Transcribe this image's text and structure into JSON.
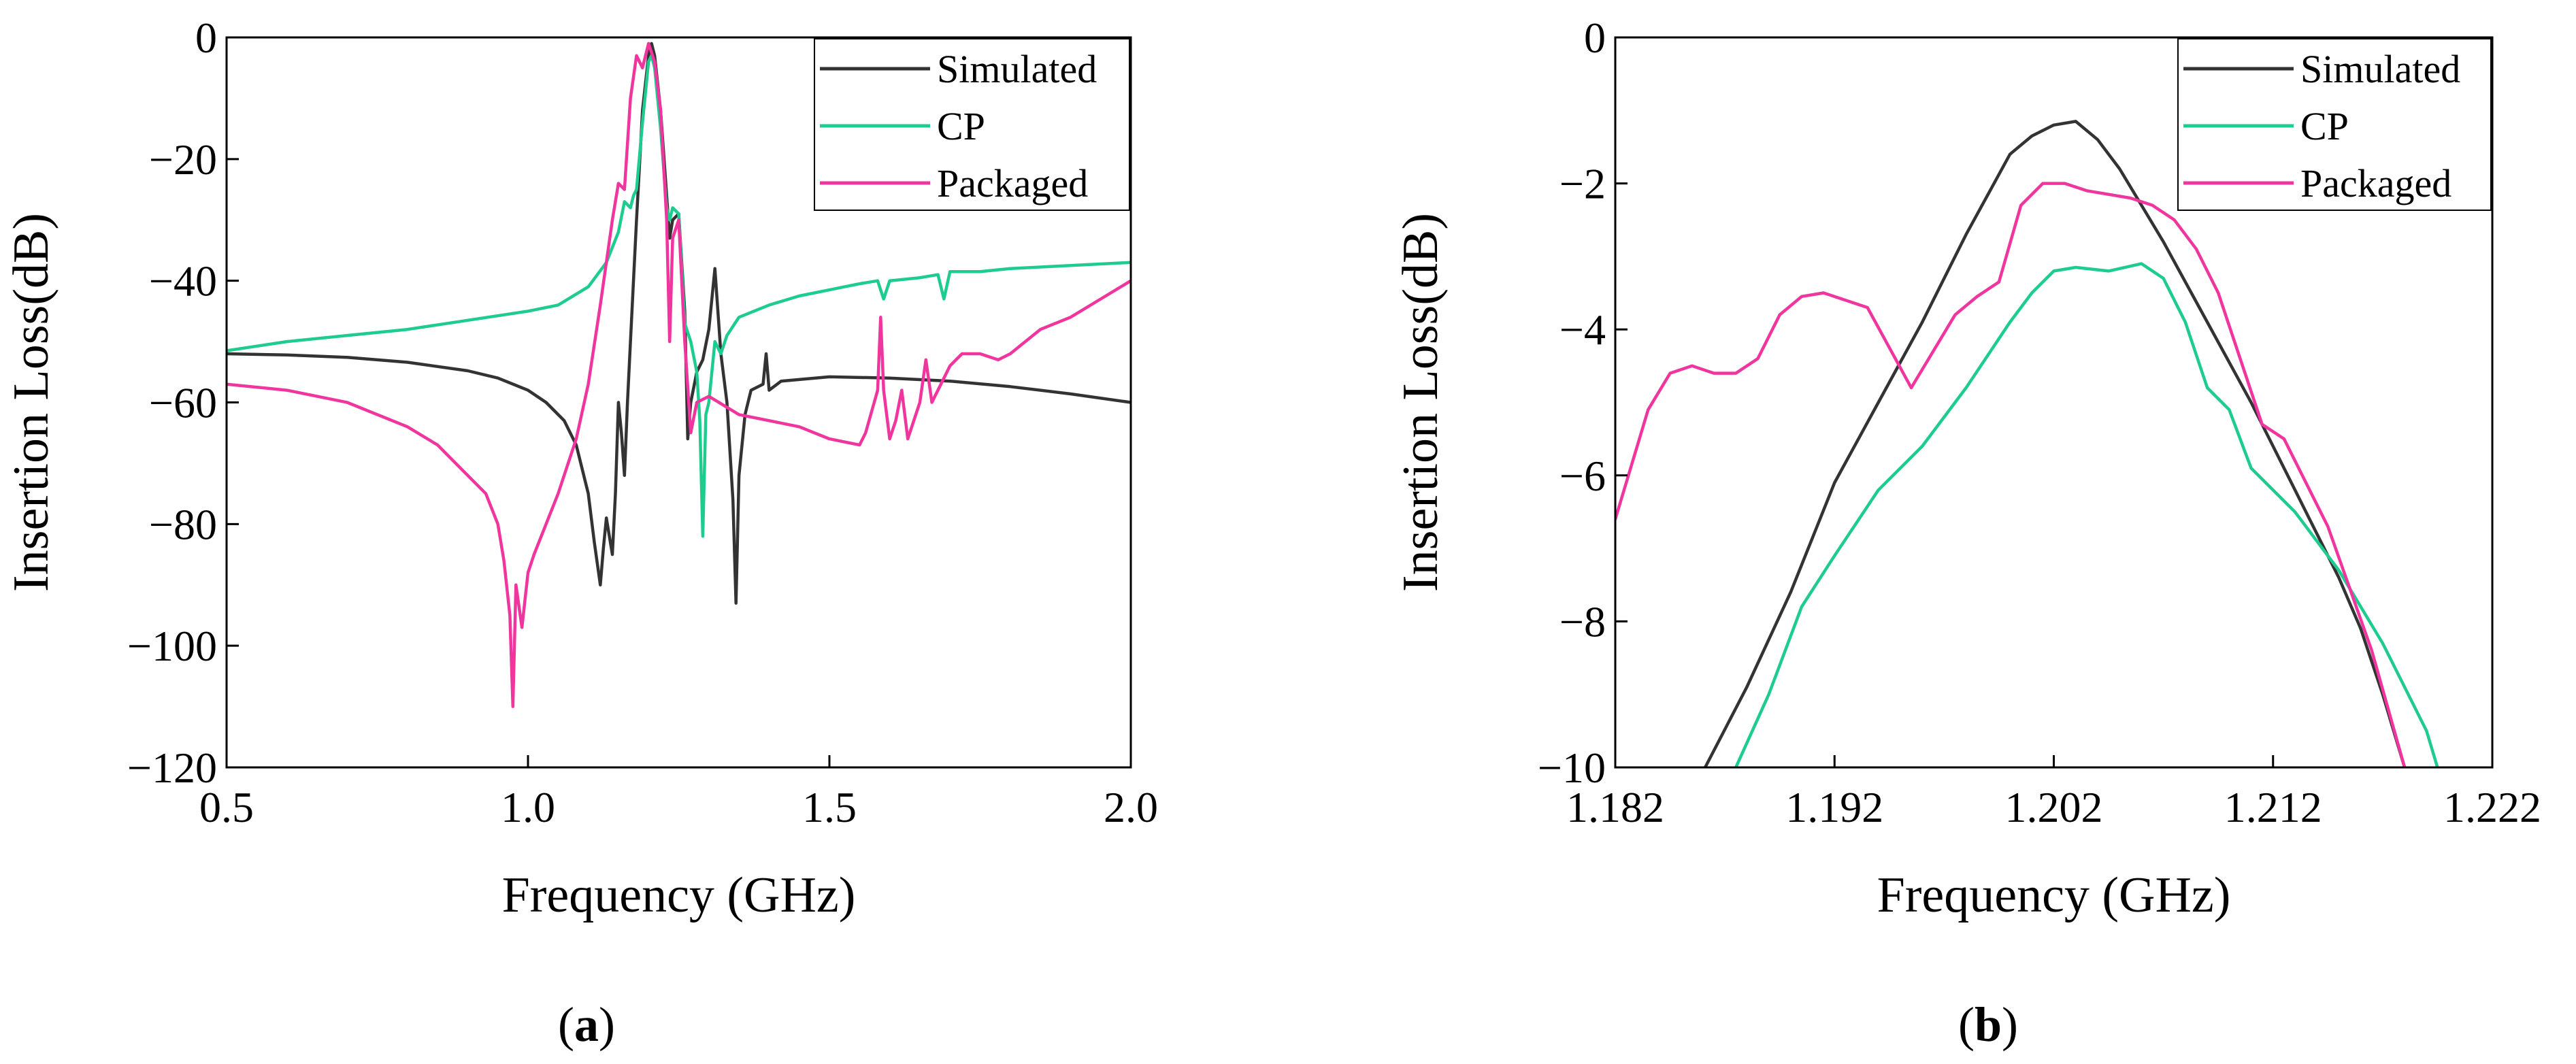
{
  "chart_data": [
    {
      "panel": "a",
      "type": "line",
      "xlabel": "Frequency (GHz)",
      "ylabel": "Insertion Loss(dB)",
      "xlim": [
        0.5,
        2.0
      ],
      "ylim": [
        -120,
        0
      ],
      "xticks": [
        0.5,
        1.0,
        1.5,
        2.0
      ],
      "xtick_labels": [
        "0.5",
        "1.0",
        "1.5",
        "2.0"
      ],
      "yticks": [
        0,
        -20,
        -40,
        -60,
        -80,
        -100,
        -120
      ],
      "ytick_labels": [
        "0",
        "−20",
        "−40",
        "−60",
        "−80",
        "−100",
        "−120"
      ],
      "grid": false,
      "legend_position": "top-right",
      "series": [
        {
          "name": "Simulated",
          "color": "#333333",
          "points": [
            [
              0.5,
              -52
            ],
            [
              0.6,
              -52.2
            ],
            [
              0.7,
              -52.6
            ],
            [
              0.8,
              -53.4
            ],
            [
              0.9,
              -54.8
            ],
            [
              0.95,
              -56
            ],
            [
              1.0,
              -58
            ],
            [
              1.03,
              -60
            ],
            [
              1.06,
              -63
            ],
            [
              1.08,
              -67
            ],
            [
              1.1,
              -75
            ],
            [
              1.11,
              -83
            ],
            [
              1.12,
              -90
            ],
            [
              1.125,
              -84
            ],
            [
              1.13,
              -79
            ],
            [
              1.14,
              -85
            ],
            [
              1.145,
              -75
            ],
            [
              1.15,
              -60
            ],
            [
              1.155,
              -65
            ],
            [
              1.16,
              -72
            ],
            [
              1.165,
              -60
            ],
            [
              1.17,
              -50
            ],
            [
              1.18,
              -30
            ],
            [
              1.19,
              -12
            ],
            [
              1.2,
              -3
            ],
            [
              1.205,
              -1
            ],
            [
              1.21,
              -3
            ],
            [
              1.22,
              -12
            ],
            [
              1.23,
              -26
            ],
            [
              1.235,
              -33
            ],
            [
              1.24,
              -30
            ],
            [
              1.25,
              -29
            ],
            [
              1.26,
              -45
            ],
            [
              1.265,
              -66
            ],
            [
              1.27,
              -60
            ],
            [
              1.28,
              -55
            ],
            [
              1.29,
              -53
            ],
            [
              1.3,
              -48
            ],
            [
              1.31,
              -38
            ],
            [
              1.315,
              -45
            ],
            [
              1.32,
              -52
            ],
            [
              1.33,
              -60
            ],
            [
              1.34,
              -76
            ],
            [
              1.345,
              -93
            ],
            [
              1.35,
              -72
            ],
            [
              1.36,
              -62
            ],
            [
              1.37,
              -58
            ],
            [
              1.39,
              -57
            ],
            [
              1.395,
              -52
            ],
            [
              1.4,
              -58
            ],
            [
              1.42,
              -56.5
            ],
            [
              1.5,
              -55.8
            ],
            [
              1.6,
              -56
            ],
            [
              1.7,
              -56.5
            ],
            [
              1.8,
              -57.4
            ],
            [
              1.9,
              -58.6
            ],
            [
              2.0,
              -60
            ]
          ]
        },
        {
          "name": "CP",
          "color": "#1fcc8f",
          "points": [
            [
              0.5,
              -51.5
            ],
            [
              0.6,
              -50
            ],
            [
              0.7,
              -49
            ],
            [
              0.8,
              -48
            ],
            [
              0.9,
              -46.5
            ],
            [
              1.0,
              -45
            ],
            [
              1.05,
              -44
            ],
            [
              1.1,
              -41
            ],
            [
              1.13,
              -37
            ],
            [
              1.15,
              -32
            ],
            [
              1.16,
              -27
            ],
            [
              1.17,
              -28
            ],
            [
              1.175,
              -26
            ],
            [
              1.18,
              -25
            ],
            [
              1.19,
              -14
            ],
            [
              1.2,
              -4
            ],
            [
              1.205,
              -3
            ],
            [
              1.21,
              -5
            ],
            [
              1.22,
              -15
            ],
            [
              1.23,
              -28
            ],
            [
              1.235,
              -30
            ],
            [
              1.24,
              -28
            ],
            [
              1.25,
              -29
            ],
            [
              1.26,
              -47
            ],
            [
              1.27,
              -50
            ],
            [
              1.28,
              -55
            ],
            [
              1.285,
              -63
            ],
            [
              1.29,
              -82
            ],
            [
              1.295,
              -62
            ],
            [
              1.3,
              -60
            ],
            [
              1.31,
              -50
            ],
            [
              1.32,
              -52
            ],
            [
              1.33,
              -49
            ],
            [
              1.35,
              -46
            ],
            [
              1.4,
              -44
            ],
            [
              1.45,
              -42.5
            ],
            [
              1.5,
              -41.5
            ],
            [
              1.55,
              -40.5
            ],
            [
              1.58,
              -40
            ],
            [
              1.59,
              -43
            ],
            [
              1.6,
              -40
            ],
            [
              1.65,
              -39.5
            ],
            [
              1.68,
              -39
            ],
            [
              1.69,
              -43
            ],
            [
              1.7,
              -38.5
            ],
            [
              1.75,
              -38.5
            ],
            [
              1.8,
              -38
            ],
            [
              1.9,
              -37.5
            ],
            [
              2.0,
              -37
            ]
          ]
        },
        {
          "name": "Packaged",
          "color": "#f0359f",
          "points": [
            [
              0.5,
              -57
            ],
            [
              0.6,
              -58
            ],
            [
              0.7,
              -60
            ],
            [
              0.8,
              -64
            ],
            [
              0.85,
              -67
            ],
            [
              0.9,
              -72
            ],
            [
              0.93,
              -75
            ],
            [
              0.95,
              -80
            ],
            [
              0.96,
              -86
            ],
            [
              0.97,
              -95
            ],
            [
              0.975,
              -110
            ],
            [
              0.98,
              -90
            ],
            [
              0.99,
              -97
            ],
            [
              1.0,
              -88
            ],
            [
              1.01,
              -85
            ],
            [
              1.03,
              -80
            ],
            [
              1.05,
              -75
            ],
            [
              1.08,
              -66
            ],
            [
              1.1,
              -57
            ],
            [
              1.12,
              -44
            ],
            [
              1.14,
              -30
            ],
            [
              1.15,
              -24
            ],
            [
              1.16,
              -25
            ],
            [
              1.17,
              -10
            ],
            [
              1.18,
              -3
            ],
            [
              1.19,
              -5
            ],
            [
              1.2,
              -1
            ],
            [
              1.21,
              -4
            ],
            [
              1.22,
              -12
            ],
            [
              1.23,
              -30
            ],
            [
              1.235,
              -50
            ],
            [
              1.24,
              -33
            ],
            [
              1.25,
              -30
            ],
            [
              1.26,
              -50
            ],
            [
              1.27,
              -65
            ],
            [
              1.28,
              -60
            ],
            [
              1.3,
              -59
            ],
            [
              1.35,
              -62
            ],
            [
              1.4,
              -63
            ],
            [
              1.45,
              -64
            ],
            [
              1.5,
              -66
            ],
            [
              1.55,
              -67
            ],
            [
              1.56,
              -65
            ],
            [
              1.58,
              -58
            ],
            [
              1.585,
              -46
            ],
            [
              1.59,
              -58
            ],
            [
              1.6,
              -66
            ],
            [
              1.61,
              -63
            ],
            [
              1.62,
              -58
            ],
            [
              1.63,
              -66
            ],
            [
              1.65,
              -60
            ],
            [
              1.66,
              -53
            ],
            [
              1.67,
              -60
            ],
            [
              1.7,
              -54
            ],
            [
              1.72,
              -52
            ],
            [
              1.75,
              -52
            ],
            [
              1.78,
              -53
            ],
            [
              1.8,
              -52
            ],
            [
              1.85,
              -48
            ],
            [
              1.9,
              -46
            ],
            [
              1.95,
              -43
            ],
            [
              2.0,
              -40
            ]
          ]
        }
      ]
    },
    {
      "panel": "b",
      "type": "line",
      "xlabel": "Frequency (GHz)",
      "ylabel": "Insertion Loss(dB)",
      "xlim": [
        1.182,
        1.222
      ],
      "ylim": [
        -10,
        0
      ],
      "xticks": [
        1.182,
        1.192,
        1.202,
        1.212,
        1.222
      ],
      "xtick_labels": [
        "1.182",
        "1.192",
        "1.202",
        "1.212",
        "1.222"
      ],
      "yticks": [
        0,
        -2,
        -4,
        -6,
        -8,
        -10
      ],
      "ytick_labels": [
        "0",
        "−2",
        "−4",
        "−6",
        "−8",
        "−10"
      ],
      "grid": false,
      "legend_position": "top-right",
      "series": [
        {
          "name": "Simulated",
          "color": "#333333",
          "points": [
            [
              1.1861,
              -10
            ],
            [
              1.188,
              -8.9
            ],
            [
              1.19,
              -7.6
            ],
            [
              1.192,
              -6.1
            ],
            [
              1.194,
              -5.0
            ],
            [
              1.196,
              -3.9
            ],
            [
              1.198,
              -2.7
            ],
            [
              1.2,
              -1.6
            ],
            [
              1.201,
              -1.35
            ],
            [
              1.202,
              -1.2
            ],
            [
              1.203,
              -1.15
            ],
            [
              1.204,
              -1.4
            ],
            [
              1.205,
              -1.8
            ],
            [
              1.207,
              -2.8
            ],
            [
              1.209,
              -3.9
            ],
            [
              1.211,
              -5.0
            ],
            [
              1.213,
              -6.2
            ],
            [
              1.215,
              -7.4
            ],
            [
              1.216,
              -8.1
            ],
            [
              1.217,
              -9.0
            ],
            [
              1.218,
              -10
            ]
          ]
        },
        {
          "name": "CP",
          "color": "#1fcc8f",
          "points": [
            [
              1.1875,
              -10
            ],
            [
              1.189,
              -9.0
            ],
            [
              1.1905,
              -7.8
            ],
            [
              1.192,
              -7.1
            ],
            [
              1.194,
              -6.2
            ],
            [
              1.196,
              -5.6
            ],
            [
              1.198,
              -4.8
            ],
            [
              1.2,
              -3.9
            ],
            [
              1.201,
              -3.5
            ],
            [
              1.202,
              -3.2
            ],
            [
              1.203,
              -3.15
            ],
            [
              1.2045,
              -3.2
            ],
            [
              1.206,
              -3.1
            ],
            [
              1.207,
              -3.3
            ],
            [
              1.208,
              -3.9
            ],
            [
              1.209,
              -4.8
            ],
            [
              1.21,
              -5.1
            ],
            [
              1.211,
              -5.9
            ],
            [
              1.213,
              -6.5
            ],
            [
              1.215,
              -7.3
            ],
            [
              1.217,
              -8.3
            ],
            [
              1.219,
              -9.5
            ],
            [
              1.2195,
              -10
            ]
          ]
        },
        {
          "name": "Packaged",
          "color": "#f0359f",
          "points": [
            [
              1.182,
              -6.6
            ],
            [
              1.1835,
              -5.1
            ],
            [
              1.1845,
              -4.6
            ],
            [
              1.1855,
              -4.5
            ],
            [
              1.1865,
              -4.6
            ],
            [
              1.1875,
              -4.6
            ],
            [
              1.1885,
              -4.4
            ],
            [
              1.1895,
              -3.8
            ],
            [
              1.1905,
              -3.55
            ],
            [
              1.1915,
              -3.5
            ],
            [
              1.1935,
              -3.7
            ],
            [
              1.1955,
              -4.8
            ],
            [
              1.1975,
              -3.8
            ],
            [
              1.1985,
              -3.55
            ],
            [
              1.1995,
              -3.35
            ],
            [
              1.2005,
              -2.3
            ],
            [
              1.2015,
              -2.0
            ],
            [
              1.2025,
              -2.0
            ],
            [
              1.2035,
              -2.1
            ],
            [
              1.2055,
              -2.2
            ],
            [
              1.2065,
              -2.3
            ],
            [
              1.2075,
              -2.5
            ],
            [
              1.2085,
              -2.9
            ],
            [
              1.2095,
              -3.5
            ],
            [
              1.2115,
              -5.3
            ],
            [
              1.2125,
              -5.5
            ],
            [
              1.2145,
              -6.7
            ],
            [
              1.2165,
              -8.4
            ],
            [
              1.218,
              -10
            ]
          ]
        }
      ]
    }
  ],
  "panel_labels": {
    "a_open": "(",
    "a_letter": "a",
    "a_close": ")",
    "b_open": "(",
    "b_letter": "b",
    "b_close": ")"
  }
}
